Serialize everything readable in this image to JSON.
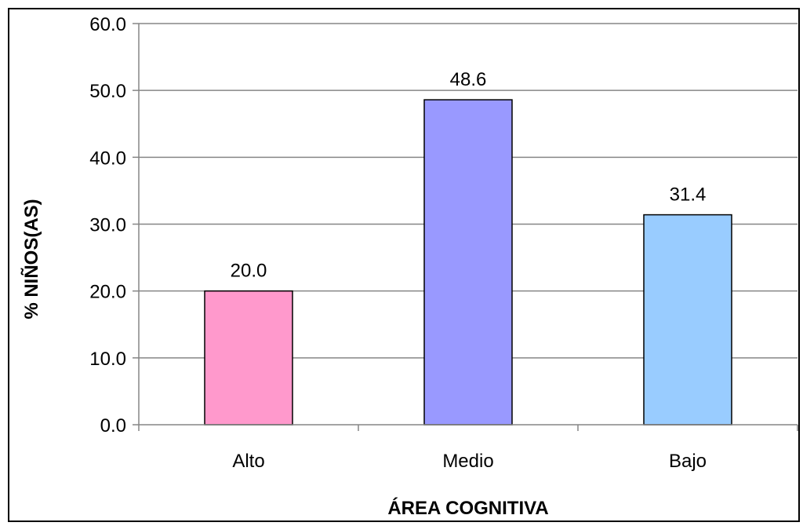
{
  "chart_data": {
    "type": "bar",
    "categories": [
      "Alto",
      "Medio",
      "Bajo"
    ],
    "values": [
      20.0,
      48.6,
      31.4
    ],
    "data_labels": [
      "20.0",
      "48.6",
      "31.4"
    ],
    "colors": [
      "#ff99cc",
      "#9999ff",
      "#99ccff"
    ],
    "title": "",
    "xlabel": "ÁREA COGNITIVA",
    "ylabel": "% NIÑOS(AS)",
    "ylim": [
      0,
      60
    ],
    "yticks": [
      "0.0",
      "10.0",
      "20.0",
      "30.0",
      "40.0",
      "50.0",
      "60.0"
    ],
    "grid": true,
    "legend": "none"
  }
}
